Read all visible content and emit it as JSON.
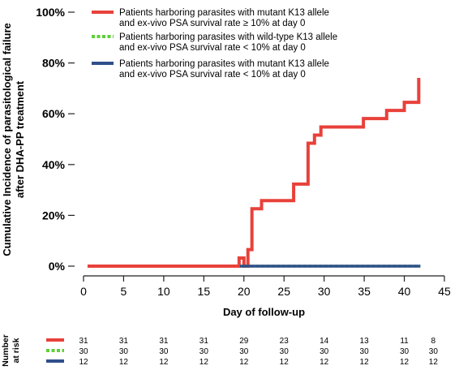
{
  "chart_data": {
    "type": "line",
    "xlabel": "Day of follow-up",
    "ylabel_lines": [
      "Cumulative Incidence of parasitological failure",
      "after DHA-PP treatment"
    ],
    "xlim": [
      0,
      45
    ],
    "ylim": [
      0,
      100
    ],
    "x_ticks": [
      "0",
      "5",
      "10",
      "15",
      "20",
      "25",
      "30",
      "35",
      "40",
      "45"
    ],
    "y_ticks": [
      "0%",
      "20%",
      "40%",
      "60%",
      "80%",
      "100%"
    ],
    "step": true,
    "legend_position": "top-left",
    "series": [
      {
        "name_lines": [
          "Patients harboring parasites with mutant K13 allele",
          "and ex-vivo PSA survival rate ≥ 10%  at day 0"
        ],
        "color": "#e8413a",
        "line_style": "solid",
        "x": [
          0.5,
          19.4,
          20.0,
          20.5,
          21.0,
          21.8,
          22.2,
          25.8,
          26.2,
          27.7,
          28.0,
          28.8,
          29.6,
          30.2,
          34.9,
          35.2,
          37.8,
          38.2,
          40.0,
          40.2,
          41.8,
          42.0
        ],
        "y": [
          0.0,
          3.2,
          0.0,
          6.5,
          22.6,
          22.6,
          25.8,
          25.8,
          32.3,
          32.3,
          48.4,
          51.6,
          54.8,
          54.8,
          58.1,
          58.1,
          61.3,
          61.3,
          64.5,
          64.5,
          73.5,
          73.5
        ]
      },
      {
        "name_lines": [
          "Patients harboring parasites with wild-type K13 allele",
          "and ex-vivo PSA survival rate < 10% at day 0"
        ],
        "color": "#5fcf3a",
        "line_style": "dotted",
        "x": [
          19.5,
          42.0
        ],
        "y": [
          0,
          0
        ]
      },
      {
        "name_lines": [
          "Patients harboring parasites with mutant K13 allele",
          "and ex-vivo PSA survival rate < 10% at day 0"
        ],
        "color": "#2f4f8a",
        "line_style": "solid",
        "x": [
          19.5,
          42.0
        ],
        "y": [
          0,
          0
        ]
      }
    ],
    "risk_table": {
      "title_lines": [
        "Number",
        "at risk"
      ],
      "days": [
        0,
        5,
        10,
        15,
        20,
        25,
        30,
        35,
        40,
        42
      ],
      "rows": [
        {
          "series": 0,
          "values": [
            "31",
            "31",
            "31",
            "31",
            "29",
            "23",
            "14",
            "13",
            "11",
            "8"
          ]
        },
        {
          "series": 1,
          "values": [
            "30",
            "30",
            "30",
            "30",
            "30",
            "30",
            "30",
            "30",
            "30",
            "30"
          ]
        },
        {
          "series": 2,
          "values": [
            "12",
            "12",
            "12",
            "12",
            "12",
            "12",
            "12",
            "12",
            "12",
            "12"
          ]
        }
      ]
    }
  }
}
